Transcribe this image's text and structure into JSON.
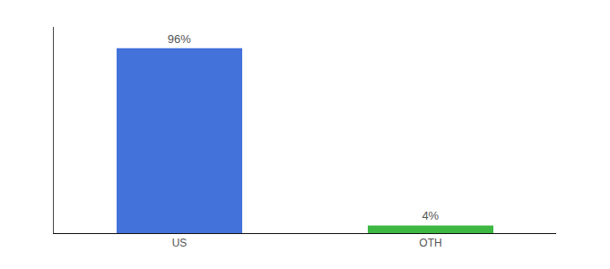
{
  "chart_data": {
    "type": "bar",
    "categories": [
      "US",
      "OTH"
    ],
    "values": [
      96,
      4
    ],
    "value_labels": [
      "96%",
      "4%"
    ],
    "colors": [
      "#4472DB",
      "#3CB843"
    ],
    "ylim": [
      0,
      107
    ],
    "data_labels": true,
    "tick_labels": "x",
    "grid": false
  }
}
